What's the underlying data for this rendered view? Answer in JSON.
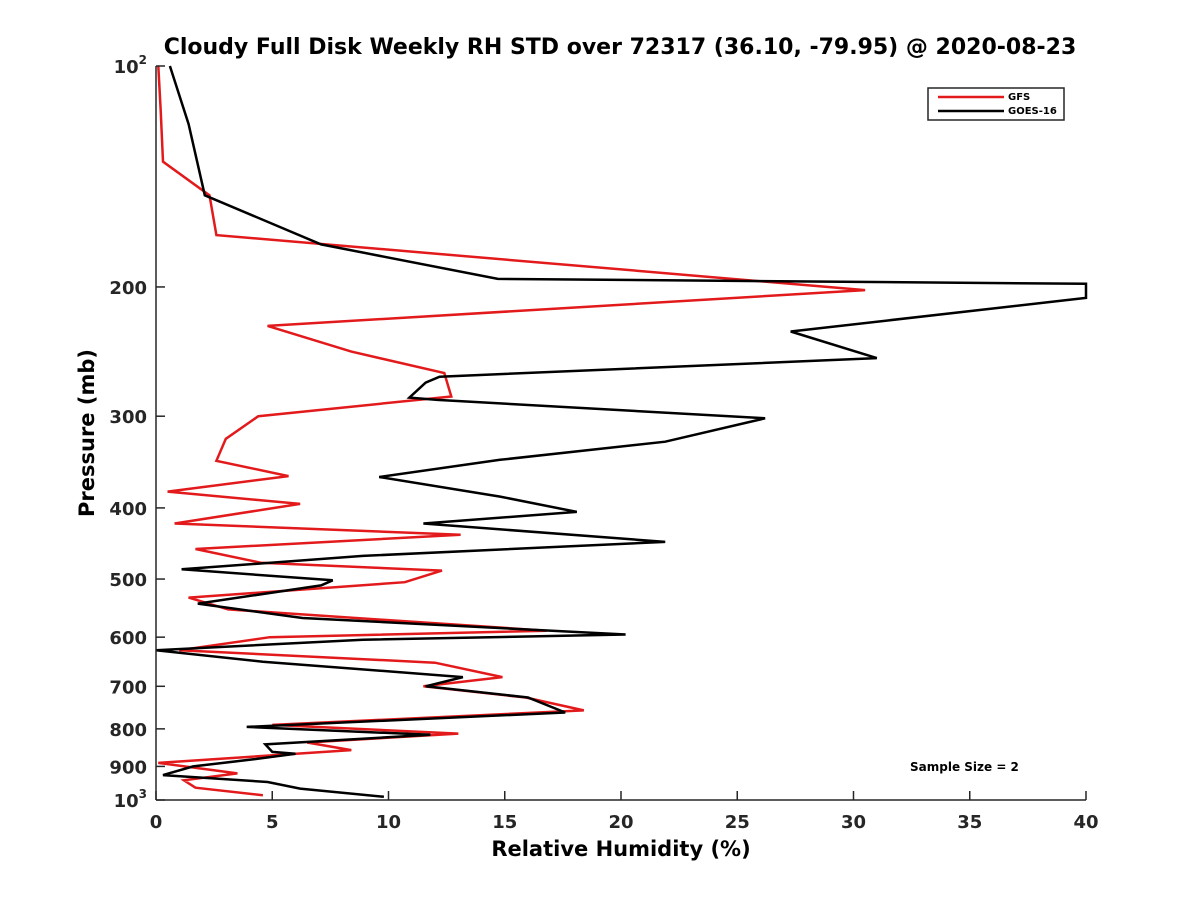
{
  "chart_data": {
    "type": "line",
    "title": "Cloudy Full Disk Weekly RH STD over 72317 (36.10, -79.95) @ 2020-08-23",
    "xlabel": "Relative Humidity (%)",
    "ylabel": "Pressure (mb)",
    "xlim": [
      0,
      40
    ],
    "ylim": [
      100,
      1000
    ],
    "yscale": "log",
    "y_reversed": true,
    "grid": false,
    "x_ticks": [
      0,
      5,
      10,
      15,
      20,
      25,
      30,
      35,
      40
    ],
    "x_tick_labels": [
      "0",
      "5",
      "10",
      "15",
      "20",
      "25",
      "30",
      "35",
      "40"
    ],
    "y_ticks": [
      100,
      200,
      300,
      400,
      500,
      600,
      700,
      800,
      900,
      1000
    ],
    "y_tick_labels": [
      {
        "base": "10",
        "sup": "2"
      },
      {
        "base": "200",
        "sup": ""
      },
      {
        "base": "300",
        "sup": ""
      },
      {
        "base": "400",
        "sup": ""
      },
      {
        "base": "500",
        "sup": ""
      },
      {
        "base": "600",
        "sup": ""
      },
      {
        "base": "700",
        "sup": ""
      },
      {
        "base": "800",
        "sup": ""
      },
      {
        "base": "900",
        "sup": ""
      },
      {
        "base": "10",
        "sup": "3"
      }
    ],
    "legend_position": "top-right",
    "annotation": "Sample Size = 2",
    "series": [
      {
        "name": "GFS",
        "color": "#e31a1c",
        "points": [
          [
            0.1,
            100
          ],
          [
            0.2,
            115
          ],
          [
            0.3,
            135
          ],
          [
            2.3,
            150
          ],
          [
            2.6,
            170
          ],
          [
            30.5,
            202
          ],
          [
            4.8,
            226
          ],
          [
            8.4,
            245
          ],
          [
            12.4,
            262
          ],
          [
            12.7,
            282
          ],
          [
            4.4,
            300
          ],
          [
            3.0,
            322
          ],
          [
            2.6,
            345
          ],
          [
            5.7,
            362
          ],
          [
            0.5,
            380
          ],
          [
            6.2,
            395
          ],
          [
            0.8,
            420
          ],
          [
            13.1,
            435
          ],
          [
            1.7,
            455
          ],
          [
            4.5,
            475
          ],
          [
            12.3,
            487
          ],
          [
            10.7,
            505
          ],
          [
            1.4,
            530
          ],
          [
            3.1,
            550
          ],
          [
            16.8,
            588
          ],
          [
            4.9,
            600
          ],
          [
            1.0,
            625
          ],
          [
            12.0,
            650
          ],
          [
            14.9,
            680
          ],
          [
            11.5,
            700
          ],
          [
            15.9,
            725
          ],
          [
            18.4,
            755
          ],
          [
            5.0,
            790
          ],
          [
            13.0,
            812
          ],
          [
            6.5,
            835
          ],
          [
            8.4,
            855
          ],
          [
            0.1,
            890
          ],
          [
            3.5,
            920
          ],
          [
            1.2,
            940
          ],
          [
            1.7,
            962
          ],
          [
            4.6,
            985
          ]
        ]
      },
      {
        "name": "GOES-16",
        "color": "#000000",
        "points": [
          [
            0.6,
            100
          ],
          [
            1.4,
            120
          ],
          [
            2.1,
            150
          ],
          [
            7.1,
            175
          ],
          [
            14.7,
            195
          ],
          [
            40.0,
            198
          ],
          [
            40.0,
            207
          ],
          [
            27.3,
            230
          ],
          [
            31.0,
            250
          ],
          [
            12.2,
            265
          ],
          [
            11.6,
            270
          ],
          [
            10.9,
            283
          ],
          [
            12.1,
            285
          ],
          [
            26.2,
            302
          ],
          [
            21.9,
            325
          ],
          [
            14.8,
            344
          ],
          [
            9.6,
            363
          ],
          [
            14.8,
            386
          ],
          [
            18.1,
            405
          ],
          [
            11.5,
            420
          ],
          [
            21.9,
            445
          ],
          [
            8.9,
            465
          ],
          [
            1.1,
            485
          ],
          [
            7.6,
            502
          ],
          [
            7.1,
            510
          ],
          [
            1.8,
            540
          ],
          [
            6.3,
            565
          ],
          [
            20.2,
            595
          ],
          [
            8.9,
            605
          ],
          [
            0.0,
            625
          ],
          [
            4.6,
            648
          ],
          [
            13.2,
            680
          ],
          [
            11.6,
            700
          ],
          [
            16.0,
            725
          ],
          [
            17.6,
            760
          ],
          [
            7.8,
            785
          ],
          [
            3.9,
            795
          ],
          [
            11.8,
            815
          ],
          [
            4.7,
            840
          ],
          [
            5.0,
            860
          ],
          [
            6.0,
            865
          ],
          [
            4.2,
            880
          ],
          [
            1.6,
            900
          ],
          [
            0.3,
            925
          ],
          [
            4.8,
            945
          ],
          [
            6.2,
            965
          ],
          [
            9.8,
            990
          ]
        ]
      }
    ]
  }
}
